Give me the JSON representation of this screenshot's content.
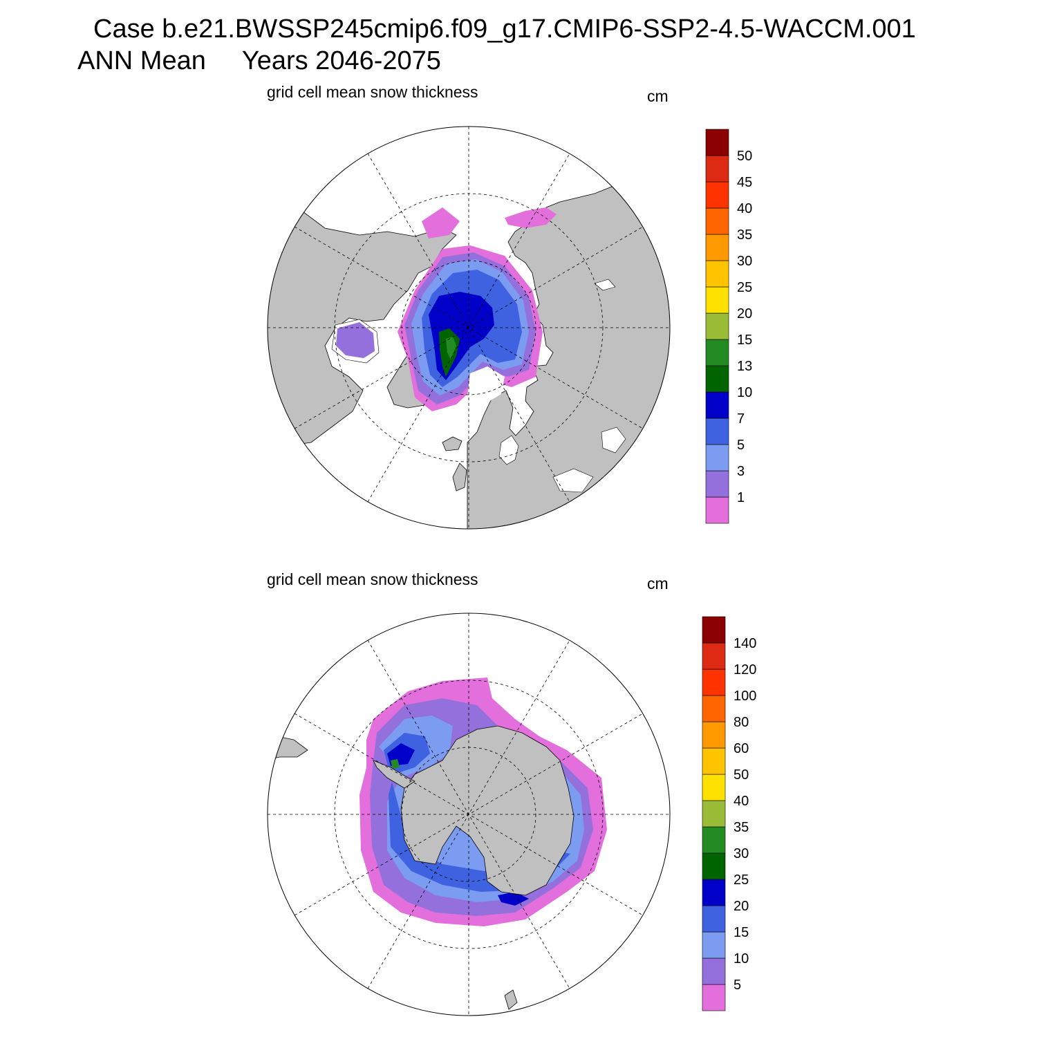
{
  "header": {
    "case_line": "Case b.e21.BWSSP245cmip6.f09_g17.CMIP6-SSP2-4.5-WACCM.001",
    "season": "ANN Mean",
    "years": "Years 2046-2075"
  },
  "panels": [
    {
      "hemisphere": "north",
      "variable": "grid cell mean snow thickness",
      "units": "cm",
      "colorbar": {
        "levels": [
          "1",
          "3",
          "5",
          "7",
          "10",
          "13",
          "15",
          "20",
          "25",
          "30",
          "35",
          "40",
          "45",
          "50"
        ],
        "colors": [
          "#e36fdc",
          "#9370db",
          "#7b9cf0",
          "#3f62e0",
          "#0000c8",
          "#006400",
          "#228b22",
          "#9abc37",
          "#ffe100",
          "#ffc300",
          "#ff9900",
          "#ff6600",
          "#ff3300",
          "#dd2a12",
          "#8b0000"
        ]
      }
    },
    {
      "hemisphere": "south",
      "variable": "grid cell mean snow thickness",
      "units": "cm",
      "colorbar": {
        "levels": [
          "5",
          "10",
          "15",
          "20",
          "25",
          "30",
          "35",
          "40",
          "50",
          "60",
          "80",
          "100",
          "120",
          "140"
        ],
        "colors": [
          "#e36fdc",
          "#9370db",
          "#7b9cf0",
          "#3f62e0",
          "#0000c8",
          "#006400",
          "#228b22",
          "#9abc37",
          "#ffe100",
          "#ffc300",
          "#ff9900",
          "#ff6600",
          "#ff3300",
          "#dd2a12",
          "#8b0000"
        ]
      }
    }
  ],
  "map_colors": {
    "land": "#c0c0c0",
    "ocean": "#ffffff",
    "outline": "#000000"
  }
}
